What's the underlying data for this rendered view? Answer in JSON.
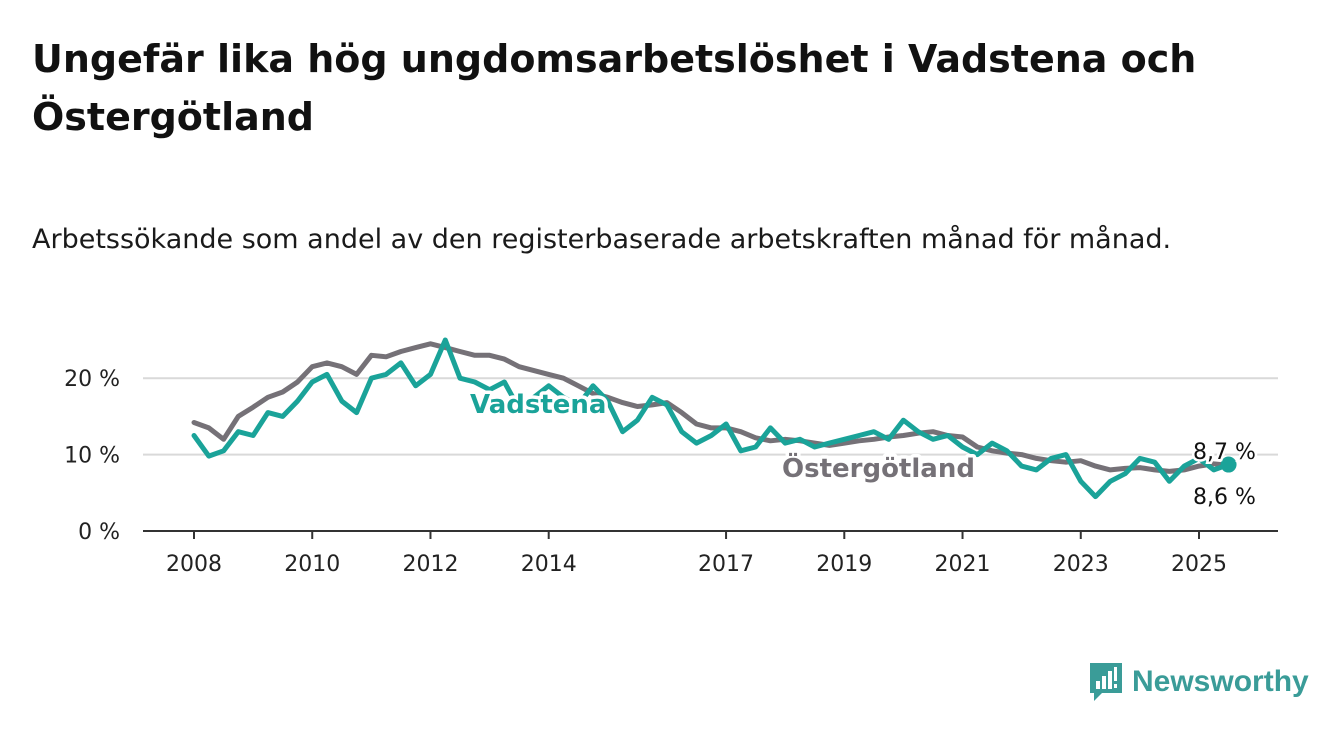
{
  "title": "Ungefär lika hög ungdomsarbetslöshet i Vadstena och Östergötland",
  "subtitle": "Arbetssökande som andel av den registerbaserade arbetskraften månad för månad.",
  "brand": "Newsworthy",
  "colors": {
    "vadstena": "#1aa399",
    "ostergotland": "#757177",
    "grid": "#d9d9d9",
    "brand": "#3a9c98"
  },
  "chart_data": {
    "type": "line",
    "x_ticks": [
      "2008",
      "2010",
      "2012",
      "2014",
      "2017",
      "2019",
      "2021",
      "2023",
      "2025"
    ],
    "x_tick_positions": [
      2008,
      2010,
      2012,
      2014,
      2017,
      2019,
      2021,
      2023,
      2025
    ],
    "y_ticks": [
      "0 %",
      "10 %",
      "20 %"
    ],
    "y_tick_values": [
      0,
      10,
      20
    ],
    "xlim": [
      2008,
      2025.6
    ],
    "ylim": [
      0,
      25
    ],
    "grid": true,
    "series": [
      {
        "name": "Östergötland",
        "label": "Östergötland",
        "end_label": "8,6 %",
        "x": [
          2008.0,
          2008.25,
          2008.5,
          2008.75,
          2009.0,
          2009.25,
          2009.5,
          2009.75,
          2010.0,
          2010.25,
          2010.5,
          2010.75,
          2011.0,
          2011.25,
          2011.5,
          2011.75,
          2012.0,
          2012.25,
          2012.5,
          2012.75,
          2013.0,
          2013.25,
          2013.5,
          2013.75,
          2014.0,
          2014.25,
          2014.5,
          2014.75,
          2015.0,
          2015.25,
          2015.5,
          2015.75,
          2016.0,
          2016.25,
          2016.5,
          2016.75,
          2017.0,
          2017.25,
          2017.5,
          2017.75,
          2018.0,
          2018.25,
          2018.5,
          2018.75,
          2019.0,
          2019.25,
          2019.5,
          2019.75,
          2020.0,
          2020.25,
          2020.5,
          2020.75,
          2021.0,
          2021.25,
          2021.5,
          2021.75,
          2022.0,
          2022.25,
          2022.5,
          2022.75,
          2023.0,
          2023.25,
          2023.5,
          2023.75,
          2024.0,
          2024.25,
          2024.5,
          2024.75,
          2025.0,
          2025.25,
          2025.5
        ],
        "values": [
          14.2,
          13.5,
          12.0,
          15.0,
          16.2,
          17.5,
          18.2,
          19.5,
          21.5,
          22.0,
          21.5,
          20.5,
          23.0,
          22.8,
          23.5,
          24.0,
          24.5,
          24.0,
          23.5,
          23.0,
          23.0,
          22.5,
          21.5,
          21.0,
          20.5,
          20.0,
          19.0,
          18.0,
          17.5,
          16.8,
          16.3,
          16.5,
          16.8,
          15.5,
          14.0,
          13.5,
          13.5,
          13.0,
          12.2,
          11.8,
          12.0,
          11.8,
          11.5,
          11.2,
          11.5,
          11.8,
          12.0,
          12.3,
          12.5,
          12.8,
          13.0,
          12.5,
          12.3,
          11.0,
          10.5,
          10.2,
          10.0,
          9.5,
          9.2,
          9.0,
          9.2,
          8.5,
          8.0,
          8.2,
          8.3,
          8.0,
          7.8,
          8.0,
          8.5,
          8.8,
          8.6
        ]
      },
      {
        "name": "Vadstena",
        "label": "Vadstena",
        "end_label": "8,7 %",
        "x": [
          2008.0,
          2008.25,
          2008.5,
          2008.75,
          2009.0,
          2009.25,
          2009.5,
          2009.75,
          2010.0,
          2010.25,
          2010.5,
          2010.75,
          2011.0,
          2011.25,
          2011.5,
          2011.75,
          2012.0,
          2012.25,
          2012.5,
          2012.75,
          2013.0,
          2013.25,
          2013.5,
          2013.75,
          2014.0,
          2014.25,
          2014.5,
          2014.75,
          2015.0,
          2015.25,
          2015.5,
          2015.75,
          2016.0,
          2016.25,
          2016.5,
          2016.75,
          2017.0,
          2017.25,
          2017.5,
          2017.75,
          2018.0,
          2018.25,
          2018.5,
          2018.75,
          2019.0,
          2019.25,
          2019.5,
          2019.75,
          2020.0,
          2020.25,
          2020.5,
          2020.75,
          2021.0,
          2021.25,
          2021.5,
          2021.75,
          2022.0,
          2022.25,
          2022.5,
          2022.75,
          2023.0,
          2023.25,
          2023.5,
          2023.75,
          2024.0,
          2024.25,
          2024.5,
          2024.75,
          2025.0,
          2025.25,
          2025.5
        ],
        "values": [
          12.5,
          9.8,
          10.5,
          13.0,
          12.5,
          15.5,
          15.0,
          17.0,
          19.5,
          20.5,
          17.0,
          15.5,
          20.0,
          20.5,
          22.0,
          19.0,
          20.5,
          25.0,
          20.0,
          19.5,
          18.5,
          19.5,
          16.0,
          17.5,
          19.0,
          17.5,
          16.5,
          19.0,
          17.0,
          13.0,
          14.5,
          17.5,
          16.5,
          13.0,
          11.5,
          12.5,
          14.0,
          10.5,
          11.0,
          13.5,
          11.5,
          12.0,
          11.0,
          11.5,
          12.0,
          12.5,
          13.0,
          12.0,
          14.5,
          13.0,
          12.0,
          12.5,
          11.0,
          10.0,
          11.5,
          10.5,
          8.5,
          8.0,
          9.5,
          10.0,
          6.5,
          4.5,
          6.5,
          7.5,
          9.5,
          9.0,
          6.5,
          8.5,
          9.5,
          8.0,
          8.7
        ]
      }
    ]
  }
}
